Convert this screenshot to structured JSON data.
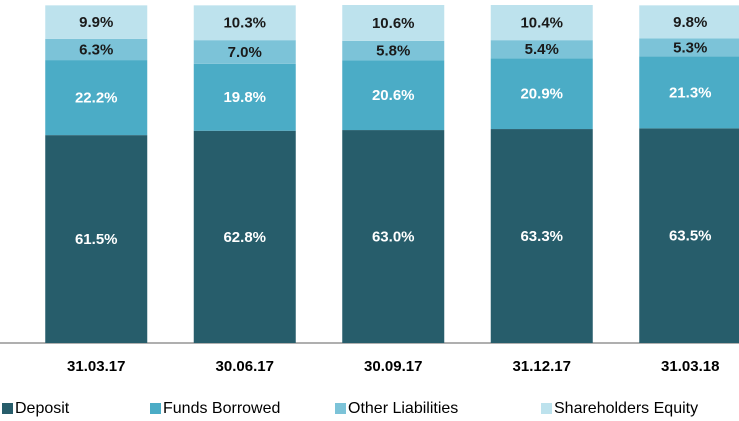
{
  "chart_data": {
    "type": "stacked_bar",
    "categories": [
      "31.03.17",
      "30.06.17",
      "30.09.17",
      "31.12.17",
      "31.03.18"
    ],
    "series": [
      {
        "name": "Deposit",
        "color": "#275d6b",
        "values": [
          61.5,
          62.8,
          63.0,
          63.3,
          63.5
        ],
        "value_labels": [
          "61.5%",
          "62.8%",
          "63.0%",
          "63.3%",
          "63.5%"
        ]
      },
      {
        "name": "Funds Borrowed",
        "color": "#4bacc6",
        "values": [
          22.2,
          19.8,
          20.6,
          20.9,
          21.3
        ],
        "value_labels": [
          "22.2%",
          "19.8%",
          "20.6%",
          "20.9%",
          "21.3%"
        ]
      },
      {
        "name": "Other Liabilities",
        "color": "#7cc3d8",
        "values": [
          6.3,
          7.0,
          5.8,
          5.4,
          5.3
        ],
        "value_labels": [
          "6.3%",
          "7.0%",
          "5.8%",
          "5.4%",
          "5.3%"
        ]
      },
      {
        "name": "Shareholders Equity",
        "color": "#bde2ed",
        "values": [
          9.9,
          10.3,
          10.6,
          10.4,
          9.8
        ],
        "value_labels": [
          "9.9%",
          "10.3%",
          "10.6%",
          "10.4%",
          "9.8%"
        ]
      }
    ]
  }
}
